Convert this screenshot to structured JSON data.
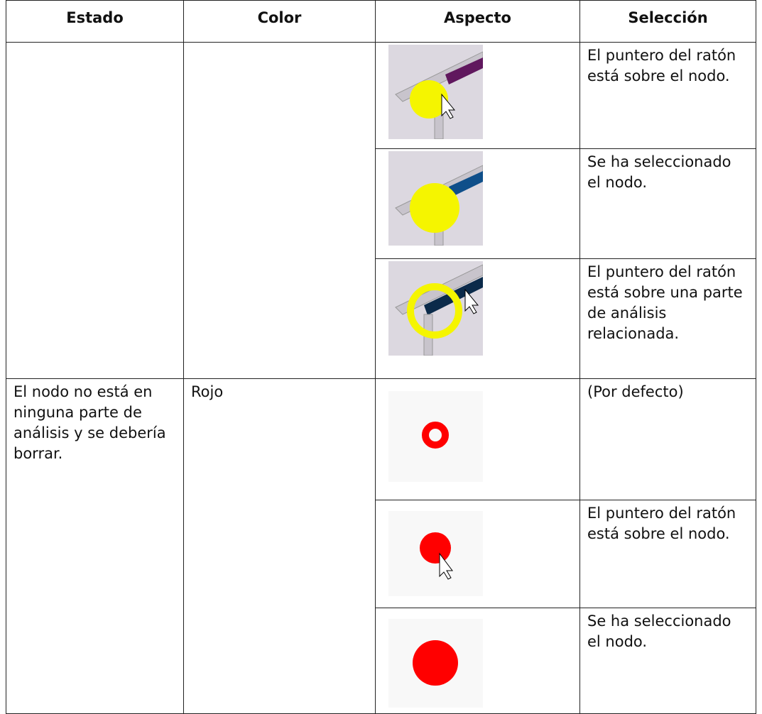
{
  "table": {
    "header": [
      "Estado",
      "Color",
      "Aspecto",
      "Selección"
    ],
    "groups": [
      {
        "selections": [
          "El puntero del ratón está sobre el nodo.",
          "Se ha seleccionado el nodo.",
          "El puntero del ratón está sobre una parte de análisis relacionada."
        ]
      },
      {
        "estado": "El nodo no está en ninguna parte de análisis y se debería borrar.",
        "color": "Rojo",
        "selections": [
          "(Por defecto)",
          "El puntero del ratón está sobre el nodo.",
          "Se ha seleccionado el nodo."
        ]
      }
    ]
  }
}
